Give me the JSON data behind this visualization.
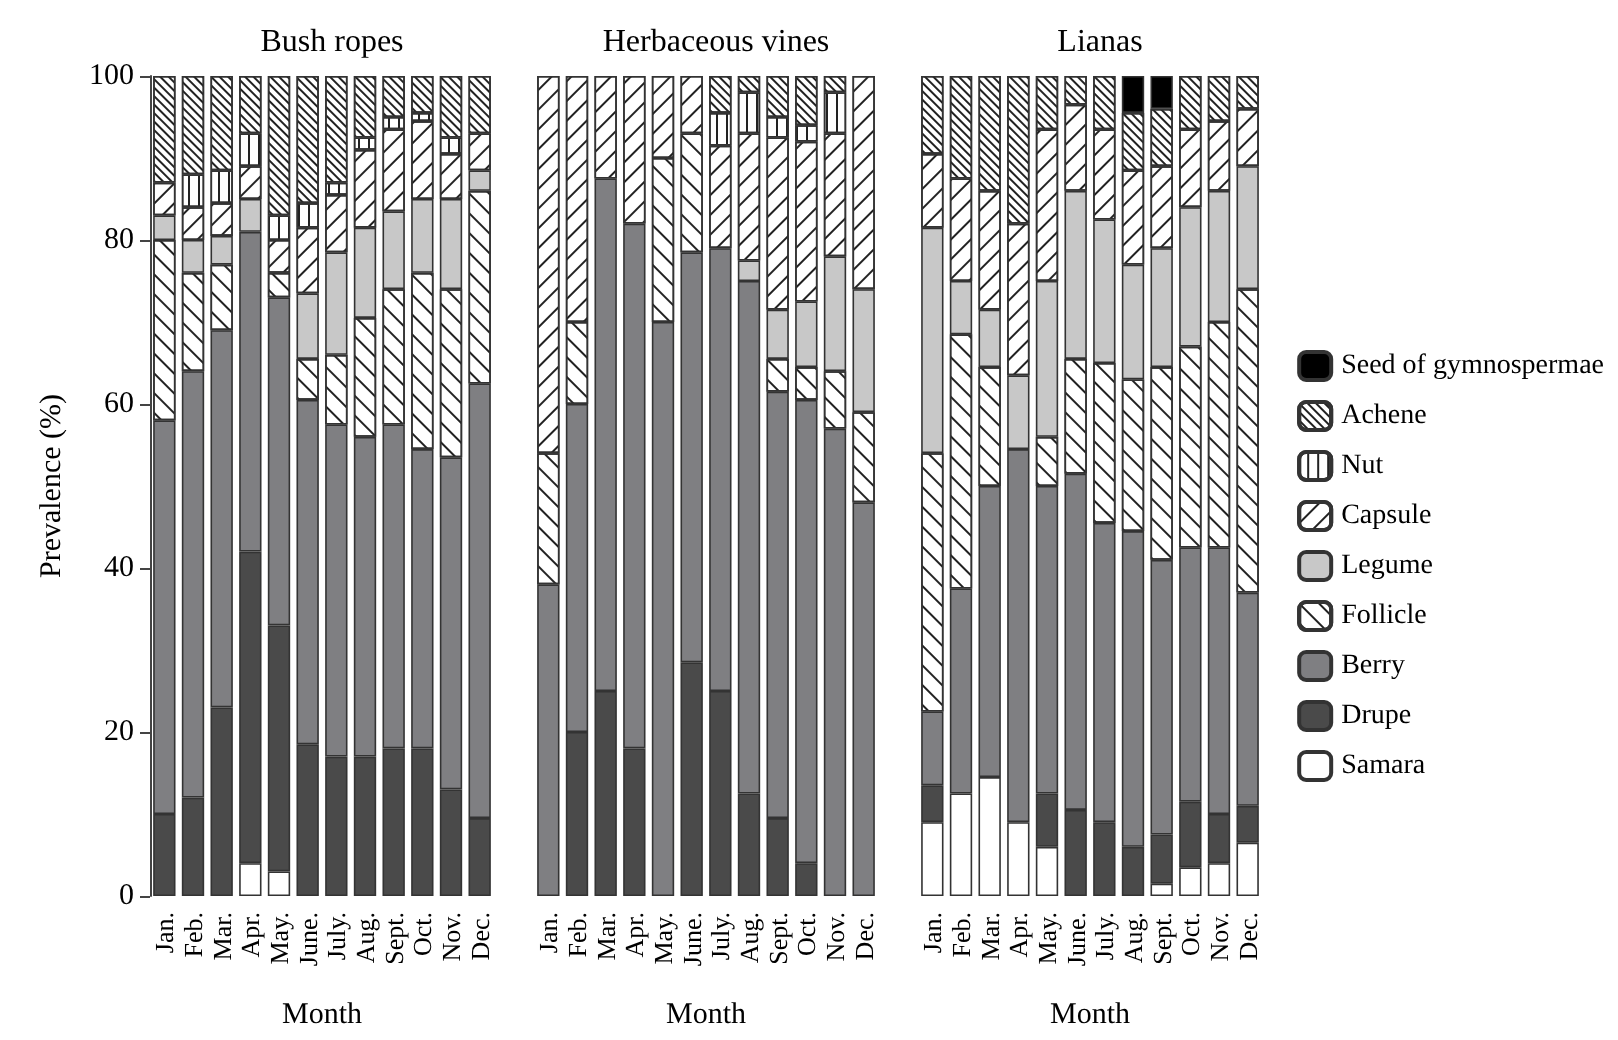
{
  "chart_data": [
    {
      "type": "bar",
      "title": "Bush ropes",
      "xlabel": "Month",
      "ylabel": "Prevalence (%)",
      "stacked": true,
      "ylim": [
        0,
        100
      ],
      "yticks": [
        0,
        20,
        40,
        60,
        80,
        100
      ],
      "legend": false,
      "categories": [
        "Jan.",
        "Feb.",
        "Mar.",
        "Apr.",
        "May.",
        "June.",
        "July.",
        "Aug.",
        "Sept.",
        "Oct.",
        "Nov.",
        "Dec."
      ],
      "series": [
        {
          "color": "#ffffff",
          "values": [
            null,
            null,
            null,
            4,
            3,
            null,
            null,
            null,
            null,
            null,
            null,
            null
          ]
        },
        {
          "color": "#4a4a4a",
          "values": [
            10,
            12,
            23,
            38,
            30,
            18.5,
            17,
            17,
            18,
            18,
            13,
            9.5
          ]
        },
        {
          "color": "#7f7f82",
          "values": [
            48,
            52,
            46,
            39,
            40,
            42,
            40.5,
            39,
            39.5,
            36.5,
            40.5,
            53
          ]
        },
        {
          "color": "#ffffff",
          "values": [
            22,
            12,
            8,
            null,
            3,
            5,
            8.5,
            14.5,
            16.5,
            21.5,
            20.5,
            23.5
          ]
        },
        {
          "color": "#c8c8c8",
          "values": [
            3,
            4,
            3.5,
            4,
            null,
            8,
            12.5,
            11,
            9.5,
            9,
            11,
            2.5
          ]
        },
        {
          "color": "#ffffff",
          "values": [
            4,
            4,
            4,
            4,
            4,
            8,
            7,
            9.5,
            10,
            9.5,
            5.5,
            4.5
          ]
        },
        {
          "color": "#ffffff",
          "values": [
            null,
            4,
            4,
            4,
            3,
            3,
            1.5,
            1.5,
            1.5,
            1,
            2,
            null
          ]
        },
        {
          "color": "#ffffff",
          "values": [
            13,
            12,
            11.5,
            7,
            17,
            15.5,
            13,
            7.5,
            5,
            4.5,
            7.5,
            7
          ]
        },
        {
          "color": "#000000",
          "values": [
            null,
            null,
            null,
            null,
            null,
            null,
            null,
            null,
            null,
            null,
            null,
            null
          ]
        }
      ]
    },
    {
      "type": "bar",
      "title": "Herbaceous vines",
      "xlabel": "Month",
      "stacked": true,
      "ylim": [
        0,
        100
      ],
      "tick_labels": "x",
      "legend": false,
      "categories": [
        "Jan.",
        "Feb.",
        "Mar.",
        "Apr.",
        "May.",
        "June.",
        "July.",
        "Aug.",
        "Sept.",
        "Oct.",
        "Nov.",
        "Dec."
      ],
      "series": [
        {
          "color": "#ffffff",
          "values": [
            null,
            null,
            null,
            null,
            null,
            null,
            null,
            null,
            null,
            null,
            null,
            null
          ]
        },
        {
          "color": "#4a4a4a",
          "values": [
            null,
            20,
            25,
            18,
            null,
            28.5,
            25,
            12.5,
            9.5,
            4,
            null,
            null
          ]
        },
        {
          "color": "#7f7f82",
          "values": [
            38,
            40,
            62.5,
            64,
            70,
            50,
            54,
            62.5,
            52,
            56.5,
            57,
            48
          ]
        },
        {
          "color": "#ffffff",
          "values": [
            16,
            10,
            null,
            null,
            20,
            14.5,
            null,
            null,
            4,
            4,
            7,
            11
          ]
        },
        {
          "color": "#c8c8c8",
          "values": [
            null,
            null,
            null,
            null,
            null,
            null,
            null,
            2.5,
            6,
            8,
            14,
            15
          ]
        },
        {
          "color": "#ffffff",
          "values": [
            46,
            30,
            12.5,
            18,
            10,
            7,
            12.5,
            15.5,
            21,
            19.5,
            15,
            26
          ]
        },
        {
          "color": "#ffffff",
          "values": [
            null,
            null,
            null,
            null,
            null,
            null,
            4,
            5,
            2.5,
            2,
            5,
            null
          ]
        },
        {
          "color": "#ffffff",
          "values": [
            null,
            null,
            null,
            null,
            null,
            null,
            4.5,
            2,
            5,
            6,
            2,
            null
          ]
        },
        {
          "color": "#000000",
          "values": [
            null,
            null,
            null,
            null,
            null,
            null,
            null,
            null,
            null,
            null,
            null,
            null
          ]
        }
      ]
    },
    {
      "type": "bar",
      "title": "Lianas",
      "xlabel": "Month",
      "stacked": true,
      "ylim": [
        0,
        100
      ],
      "tick_labels": "x",
      "legend": "right",
      "categories": [
        "Jan.",
        "Feb.",
        "Mar.",
        "Apr.",
        "May.",
        "June.",
        "July.",
        "Aug.",
        "Sept.",
        "Oct.",
        "Nov.",
        "Dec."
      ],
      "series": [
        {
          "name": "Samara",
          "color": "#ffffff",
          "values": [
            9,
            12.5,
            14.5,
            9,
            6,
            null,
            null,
            null,
            1.5,
            3.5,
            4,
            6.5
          ]
        },
        {
          "name": "Drupe",
          "color": "#4a4a4a",
          "values": [
            4.5,
            null,
            null,
            null,
            6.5,
            10.5,
            9,
            6,
            6,
            8,
            6,
            4.5
          ]
        },
        {
          "name": "Berry",
          "color": "#7f7f82",
          "values": [
            9,
            25,
            35.5,
            45.5,
            37.5,
            41,
            36.5,
            38.5,
            33.5,
            31,
            32.5,
            26
          ]
        },
        {
          "name": "Follicle",
          "color": "#ffffff",
          "values": [
            31.5,
            31,
            14.5,
            null,
            6,
            14,
            19.5,
            18.5,
            23.5,
            24.5,
            27.5,
            37
          ]
        },
        {
          "name": "Legume",
          "color": "#c8c8c8",
          "values": [
            27.5,
            6.5,
            7,
            9,
            19,
            20.5,
            17.5,
            14,
            14.5,
            17,
            16,
            15
          ]
        },
        {
          "name": "Capsule",
          "color": "#ffffff",
          "values": [
            9,
            12.5,
            14.5,
            18.5,
            18.5,
            10.5,
            11,
            11.5,
            10,
            9.5,
            8.5,
            7
          ]
        },
        {
          "name": "Nut",
          "color": "#ffffff",
          "values": [
            null,
            null,
            null,
            null,
            null,
            null,
            null,
            null,
            null,
            null,
            null,
            null
          ]
        },
        {
          "name": "Achene",
          "color": "#ffffff",
          "values": [
            9.5,
            12.5,
            14,
            18,
            6.5,
            3.5,
            6.5,
            7,
            7,
            6.5,
            5.5,
            4
          ]
        },
        {
          "name": "Seed of gymnospermae",
          "color": "#000000",
          "values": [
            null,
            null,
            null,
            null,
            null,
            null,
            null,
            4.5,
            4,
            null,
            null,
            null
          ]
        }
      ]
    }
  ]
}
